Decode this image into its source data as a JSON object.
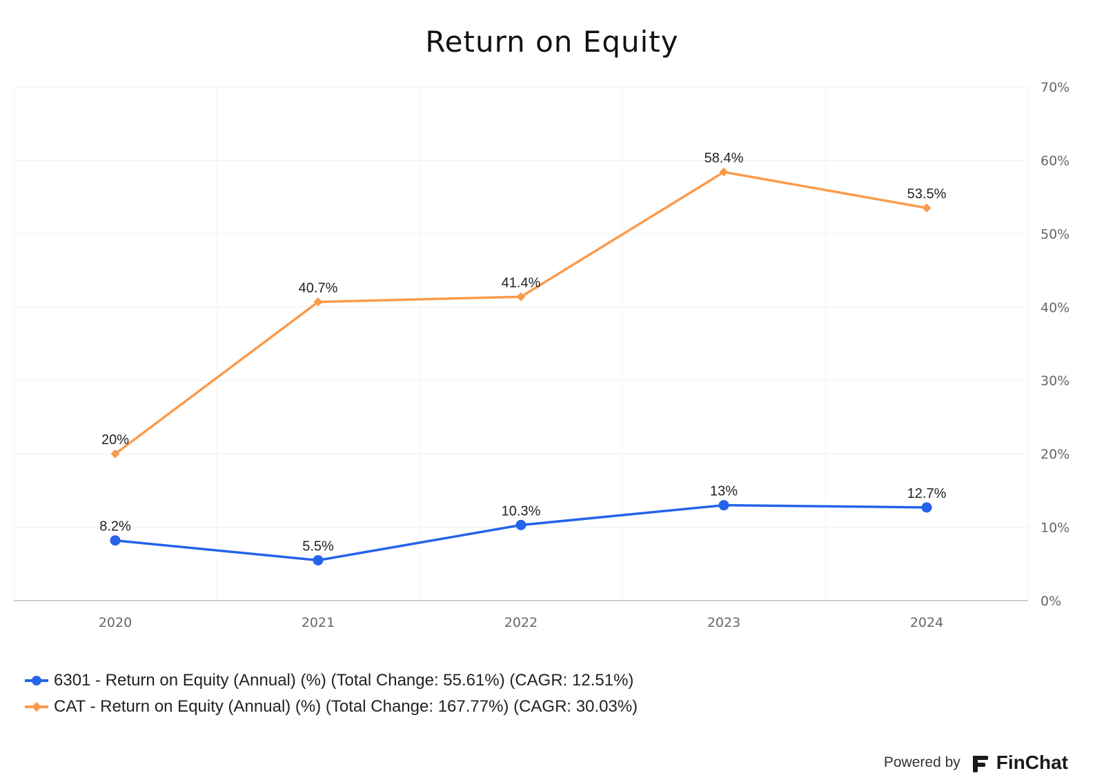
{
  "chart_data": {
    "type": "line",
    "title": "Return on Equity",
    "x": [
      "2020",
      "2021",
      "2022",
      "2023",
      "2024"
    ],
    "ylim": [
      0,
      70
    ],
    "y_ticks": [
      "0%",
      "10%",
      "20%",
      "30%",
      "40%",
      "50%",
      "60%",
      "70%"
    ],
    "y_axis_side": "right",
    "grid": true,
    "legend_position": "bottom-left",
    "series": [
      {
        "name": "6301 - Return on Equity (Annual) (%) (Total Change: 55.61%) (CAGR: 12.51%)",
        "values": [
          8.2,
          5.5,
          10.3,
          13,
          12.7
        ],
        "labels": [
          "8.2%",
          "5.5%",
          "10.3%",
          "13%",
          "12.7%"
        ],
        "color": "#2563eb",
        "marker": "circle"
      },
      {
        "name": "CAT - Return on Equity (Annual) (%) (Total Change: 167.77%) (CAGR: 30.03%)",
        "values": [
          20,
          40.7,
          41.4,
          58.4,
          53.5
        ],
        "labels": [
          "20%",
          "40.7%",
          "41.4%",
          "58.4%",
          "53.5%"
        ],
        "color": "#fb9a4b",
        "marker": "diamond"
      }
    ]
  },
  "footer": {
    "powered_by": "Powered by",
    "brand": "FinChat",
    "logo_icon": "finchat-logo-icon"
  }
}
